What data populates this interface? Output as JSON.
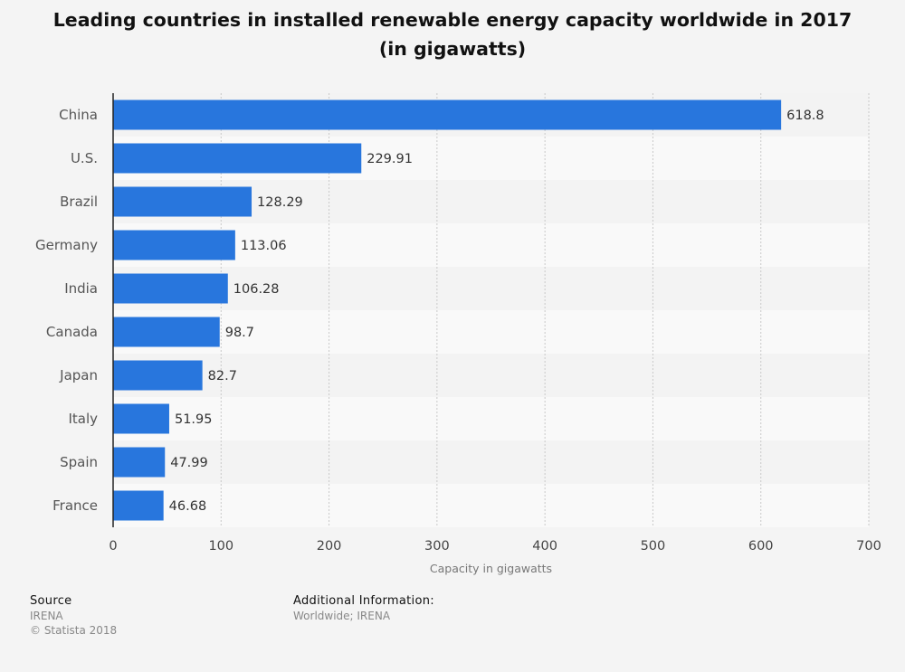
{
  "chart_data": {
    "type": "bar",
    "orientation": "horizontal",
    "title": "Leading countries in installed renewable energy capacity worldwide in 2017 (in gigawatts)",
    "categories": [
      "China",
      "U.S.",
      "Brazil",
      "Germany",
      "India",
      "Canada",
      "Japan",
      "Italy",
      "Spain",
      "France"
    ],
    "values": [
      618.8,
      229.91,
      128.29,
      113.06,
      106.28,
      98.7,
      82.7,
      51.95,
      47.99,
      46.68
    ],
    "value_labels": [
      "618.8",
      "229.91",
      "128.29",
      "113.06",
      "106.28",
      "98.7",
      "82.7",
      "51.95",
      "47.99",
      "46.68"
    ],
    "xlabel": "Capacity in gigawatts",
    "ylabel": "",
    "xlim": [
      0,
      700
    ],
    "xticks": [
      0,
      100,
      200,
      300,
      400,
      500,
      600,
      700
    ],
    "grid": true,
    "bar_color": "#2876dd"
  },
  "footer": {
    "source_heading": "Source",
    "source_name": "IRENA",
    "copyright": "© Statista 2018",
    "additional_heading": "Additional Information:",
    "additional_text": "Worldwide; IRENA"
  }
}
